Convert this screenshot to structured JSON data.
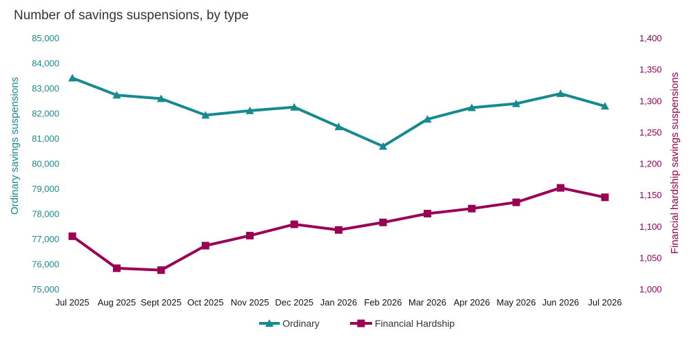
{
  "chart_data": {
    "type": "line",
    "title": "Number of savings suspensions, by type",
    "categories": [
      "Jul 2025",
      "Aug 2025",
      "Sept 2025",
      "Oct 2025",
      "Nov 2025",
      "Dec 2025",
      "Jan 2026",
      "Feb 2026",
      "Mar 2026",
      "Apr 2026",
      "May 2026",
      "Jun 2026",
      "Jul 2026"
    ],
    "y_left": {
      "label": "Ordinary savings suspensions",
      "range": [
        75000,
        85000
      ],
      "ticks": [
        "75,000",
        "76,000",
        "77,000",
        "78,000",
        "79,000",
        "80,000",
        "81,000",
        "82,000",
        "83,000",
        "84,000",
        "85,000"
      ],
      "color": "#178a8f"
    },
    "y_right": {
      "label": "Financial hardship savings suspensions",
      "range": [
        1000,
        1400
      ],
      "ticks": [
        "1,000",
        "1,050",
        "1,100",
        "1,150",
        "1,200",
        "1,250",
        "1,300",
        "1,350",
        "1,400"
      ],
      "color": "#990055"
    },
    "series": [
      {
        "name": "Ordinary",
        "axis": "left",
        "marker": "triangle",
        "color": "#178a8f",
        "values": [
          83400,
          82720,
          82580,
          81920,
          82100,
          82240,
          81460,
          80680,
          81760,
          82220,
          82380,
          82780,
          82280
        ]
      },
      {
        "name": "Financial Hardship",
        "axis": "right",
        "marker": "square",
        "color": "#990055",
        "values": [
          1084,
          1033,
          1030,
          1069,
          1085,
          1103,
          1094,
          1106,
          1120,
          1128,
          1138,
          1161,
          1146
        ]
      }
    ],
    "legend_position": "bottom",
    "grid": false
  }
}
